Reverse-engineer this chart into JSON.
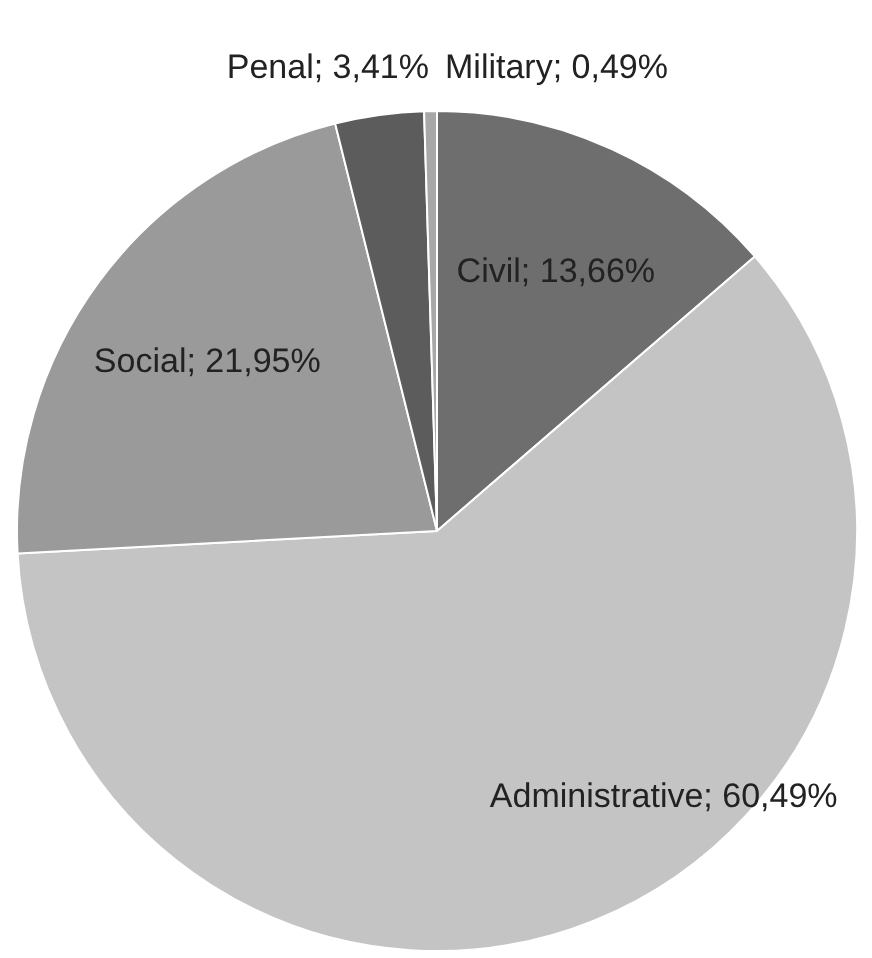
{
  "chart_data": {
    "type": "pie",
    "categories": [
      "Civil",
      "Administrative",
      "Social",
      "Penal",
      "Military"
    ],
    "values": [
      13.66,
      60.49,
      21.95,
      3.41,
      0.49
    ],
    "colors": [
      "#6e6e6e",
      "#c4c4c4",
      "#9a9a9a",
      "#5c5c5c",
      "#a8a8a8"
    ],
    "value_labels": [
      "13,66%",
      "60,49%",
      "21,95%",
      "3,41%",
      "0,49%"
    ]
  }
}
